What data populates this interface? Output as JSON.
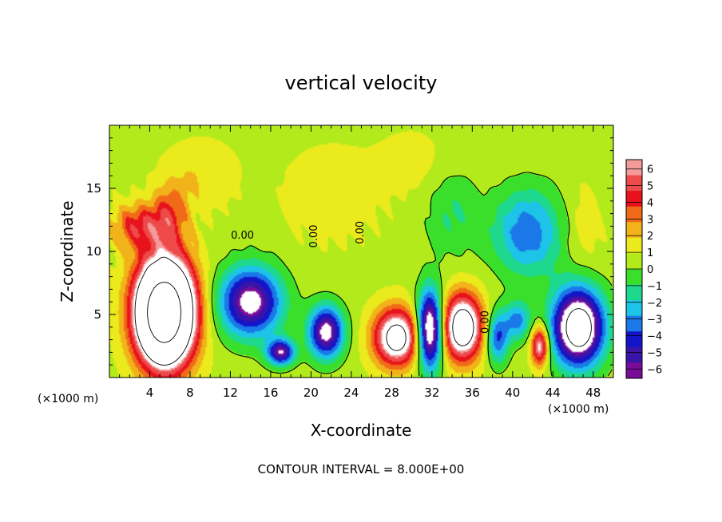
{
  "chart_data": {
    "type": "heatmap",
    "title": "vertical velocity",
    "xlabel": "X-coordinate",
    "ylabel": "Z-coordinate",
    "x_unit_left": "(×1000 m)",
    "x_unit_right": "(×1000 m)",
    "xlim": [
      0,
      50
    ],
    "ylim": [
      0,
      20
    ],
    "x_ticks": [
      4,
      8,
      12,
      16,
      20,
      24,
      28,
      32,
      36,
      40,
      44,
      48
    ],
    "y_ticks": [
      5,
      10,
      15
    ],
    "footer": "CONTOUR INTERVAL = 8.000E+00",
    "contour_labels": [
      "0.00",
      "0.00",
      "0.00",
      "0.00"
    ],
    "colorbar": {
      "ticks": [
        6,
        5,
        4,
        3,
        2,
        1,
        0,
        -1,
        -2,
        -3,
        -4,
        -5,
        -6
      ],
      "tick_labels": [
        "6",
        "5",
        "4",
        "3",
        "2",
        "1",
        "0",
        "−1",
        "−2",
        "−3",
        "−4",
        "−5",
        "−6"
      ],
      "colors": [
        "#f39a9a",
        "#ee4a4a",
        "#e8121c",
        "#f06a18",
        "#f2b21a",
        "#eaea1c",
        "#b2ea1c",
        "#3adf2b",
        "#1ed88d",
        "#1ec4e8",
        "#1a78e8",
        "#1414c8",
        "#3a14a8",
        "#7a0c98"
      ]
    },
    "features": [
      {
        "kind": "updraft",
        "x": 5.5,
        "z": 5.2,
        "rx": 3.2,
        "rz": 4.6,
        "peak": 22
      },
      {
        "kind": "updraft_cap",
        "x": 3.0,
        "z": 12.0,
        "rx": 3.0,
        "rz": 2.0,
        "peak": 4
      },
      {
        "kind": "updraft_cap",
        "x": 6.0,
        "z": 13.0,
        "rx": 2.0,
        "rz": 2.6,
        "peak": 3
      },
      {
        "kind": "downdraft",
        "x": 14.0,
        "z": 6.0,
        "rx": 3.6,
        "rz": 3.2,
        "peak": -8
      },
      {
        "kind": "downdraft",
        "x": 17.0,
        "z": 2.0,
        "rx": 1.6,
        "rz": 1.2,
        "peak": -7
      },
      {
        "kind": "downdraft",
        "x": 21.5,
        "z": 3.6,
        "rx": 2.0,
        "rz": 2.4,
        "peak": -8
      },
      {
        "kind": "updraft",
        "x": 28.5,
        "z": 3.2,
        "rx": 2.6,
        "rz": 2.6,
        "peak": 9
      },
      {
        "kind": "downdraft",
        "x": 31.8,
        "z": 3.8,
        "rx": 1.5,
        "rz": 3.6,
        "peak": -10
      },
      {
        "kind": "updraft",
        "x": 35.0,
        "z": 4.0,
        "rx": 2.3,
        "rz": 3.0,
        "peak": 10
      },
      {
        "kind": "downdraft",
        "x": 38.5,
        "z": 3.2,
        "rx": 1.3,
        "rz": 2.4,
        "peak": -5
      },
      {
        "kind": "downdraft",
        "x": 40.5,
        "z": 4.5,
        "rx": 1.5,
        "rz": 1.8,
        "peak": -4
      },
      {
        "kind": "updraft",
        "x": 42.7,
        "z": 2.5,
        "rx": 1.0,
        "rz": 1.8,
        "peak": 7
      },
      {
        "kind": "downdraft",
        "x": 46.5,
        "z": 4.0,
        "rx": 3.0,
        "rz": 3.6,
        "peak": -11
      },
      {
        "kind": "downdraft",
        "x": 41.5,
        "z": 11.5,
        "rx": 4.0,
        "rz": 4.0,
        "peak": -4.5
      },
      {
        "kind": "downdraft",
        "x": 34.0,
        "z": 13.0,
        "rx": 3.0,
        "rz": 4.0,
        "peak": -1.8
      },
      {
        "kind": "updraft",
        "x": 22.0,
        "z": 14.5,
        "rx": 5.0,
        "rz": 4.0,
        "peak": 1.2
      },
      {
        "kind": "updraft",
        "x": 9.0,
        "z": 16.0,
        "rx": 4.0,
        "rz": 3.0,
        "peak": 1.3
      },
      {
        "kind": "updraft",
        "x": 30.0,
        "z": 17.0,
        "rx": 4.0,
        "rz": 3.0,
        "peak": 0.8
      },
      {
        "kind": "updraft",
        "x": 47.0,
        "z": 12.0,
        "rx": 2.2,
        "rz": 4.0,
        "peak": 1.0
      }
    ]
  }
}
